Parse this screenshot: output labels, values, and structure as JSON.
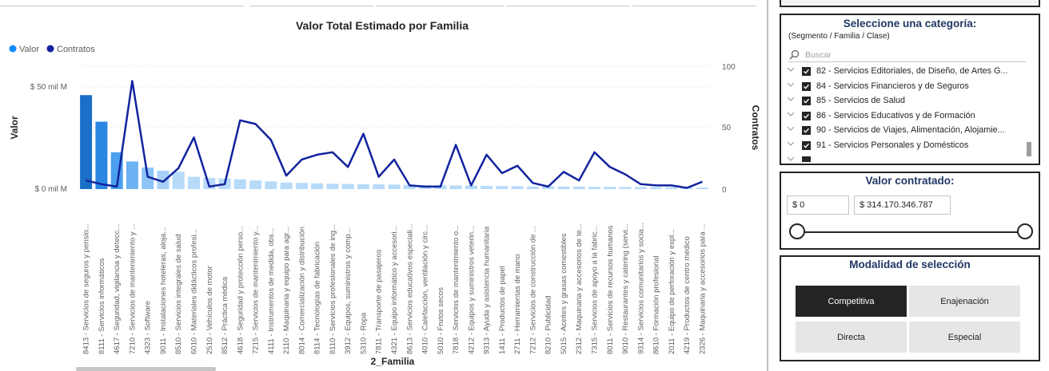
{
  "chart_data": {
    "type": "bar",
    "title": "Valor Total Estimado por Familia",
    "legend": [
      {
        "name": "Valor",
        "color": "#118dff"
      },
      {
        "name": "Contratos",
        "color": "#12239e"
      }
    ],
    "legend_position": "top-left",
    "xlabel": "2_Familia",
    "ylabel": "Valor",
    "y2label": "Contratos",
    "y_ticks": [
      "$ 0 mil M",
      "$ 50 mil M"
    ],
    "y2_ticks": [
      "0",
      "50",
      "100"
    ],
    "ylim": [
      0,
      60
    ],
    "y2lim": [
      0,
      100
    ],
    "categories": [
      "8413 - Servicios de seguros y pensio...",
      "8111 - Servicios informáticos",
      "4617 - Seguridad, vigilancia y detecc...",
      "7210 - Servicios de mantenimiento y ...",
      "4323 - Software",
      "9011 - Instalaciones hoteleras, aloja...",
      "8510 - Servicios integrales de salud",
      "6010 - Materiales didácticos profesi...",
      "2510 - Vehículos de motor",
      "8512 - Práctica médica",
      "4618 - Seguridad y protección perso...",
      "7215 - Servicios de mantenimiento y...",
      "4111 - Instrumentos de medida, obs...",
      "2110 - Maquinaria y equipo para agr...",
      "8014 - Comercialización y distribución",
      "8114 - Tecnologías de fabricación",
      "8110 - Servicios profesionales de ing...",
      "3912 - Equipos, suministros y comp...",
      "5310 - Ropa",
      "7811 - Transporte de pasajeros",
      "4321 - Equipo informático y accesori...",
      "8613 - Servicios educativos especiali...",
      "4010 - Calefacción, ventilación y circ...",
      "5010 - Frutos secos",
      "7818 - Servicios de mantenimiento o...",
      "4212 - Equipos y suministros veterin...",
      "9313 - Ayuda y asistencia humanitaria",
      "1411 - Productos de papel",
      "2711 - Herramientas de mano",
      "7212 - Servicios de construcción de ...",
      "8210 - Publicidad",
      "5015 - Aceites y grasas comestibles",
      "2312 - Maquinaria y accesorios de te...",
      "7315 - Servicios de apoyo a la fabric...",
      "8011 - Servicios de recursos humanos",
      "9010 - Restaurantes y catering (servi...",
      "9314 - Servicios comunitarios y socia...",
      "8610 - Formación profesional",
      "2011 - Equipo de perforación y expl...",
      "4219 - Productos de centro médico",
      "2326 - Maquinaria y accesorios para ..."
    ],
    "series": [
      {
        "name": "Valor",
        "axis": "left",
        "unit": "mil M",
        "values": [
          46,
          33,
          18,
          13.5,
          10.5,
          9,
          8.5,
          6,
          5.5,
          5.2,
          4.8,
          4.2,
          3.8,
          3.2,
          3,
          2.8,
          2.6,
          2.5,
          2.4,
          2.3,
          2.2,
          2.1,
          2,
          1.9,
          1.8,
          1.7,
          1.6,
          1.5,
          1.4,
          1.3,
          1.3,
          1.2,
          1.2,
          1.1,
          1.1,
          1,
          1,
          0.9,
          0.9,
          0.8,
          0.8
        ]
      },
      {
        "name": "Contratos",
        "axis": "right",
        "values": [
          7,
          4,
          2,
          88,
          10,
          6,
          17,
          42,
          2,
          4,
          56,
          53,
          40,
          11,
          24,
          28,
          30,
          18,
          45,
          10,
          24,
          3,
          2,
          2,
          36,
          3,
          28,
          13,
          19,
          5,
          2,
          14,
          7,
          30,
          18,
          12,
          4,
          3,
          3,
          1,
          6
        ]
      }
    ],
    "highlighted_bars": 3
  },
  "category_slicer": {
    "title": "Seleccione una categoría:",
    "subtitle": "(Segmento / Familia / Clase)",
    "search_placeholder": "Buscar",
    "items": [
      {
        "label": "82 - Servicios Editoriales, de Diseño, de Artes G...",
        "checked": true
      },
      {
        "label": "84 - Servicios Financieros y de Seguros",
        "checked": true
      },
      {
        "label": "85 - Servicios de Salud",
        "checked": true
      },
      {
        "label": "86 - Servicios Educativos y de Formación",
        "checked": true
      },
      {
        "label": "90 - Servicios de Viajes, Alimentación, Alojamie...",
        "checked": true
      },
      {
        "label": "91 - Servicios Personales y Domésticos",
        "checked": true
      }
    ]
  },
  "value_slicer": {
    "title": "Valor contratado:",
    "min": "$ 0",
    "max": "$ 314.170.346.787"
  },
  "mode_slicer": {
    "title": "Modalidad de selección",
    "options": [
      {
        "label": "Competitiva",
        "selected": true
      },
      {
        "label": "Enajenación",
        "selected": false
      },
      {
        "label": "Directa",
        "selected": false
      },
      {
        "label": "Especial",
        "selected": false
      }
    ]
  }
}
